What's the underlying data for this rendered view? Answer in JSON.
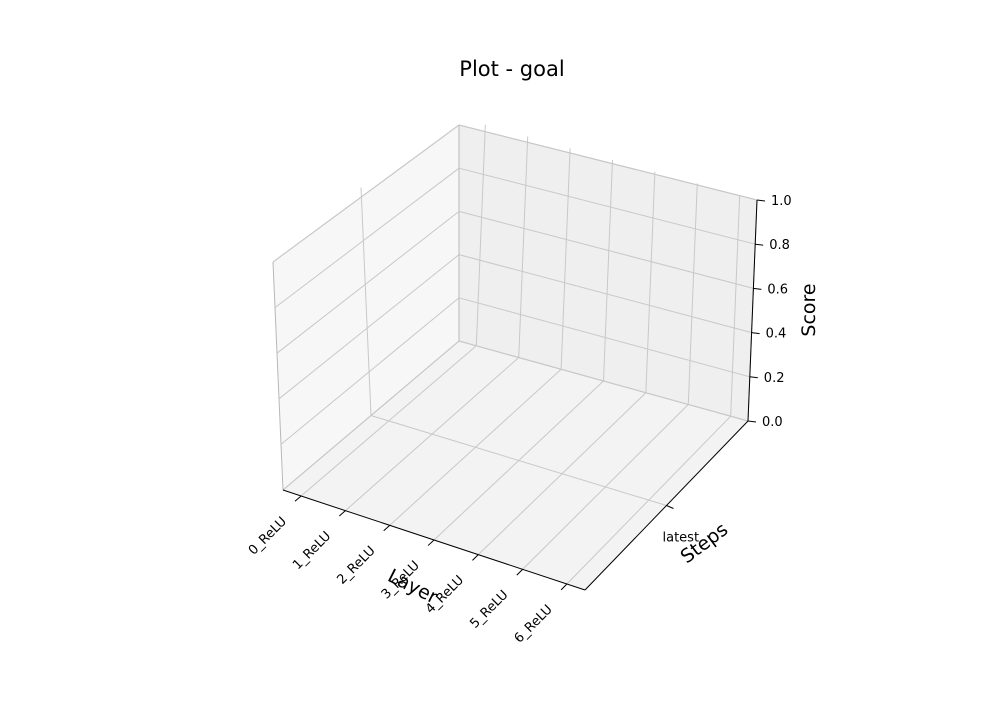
{
  "chart_data": {
    "type": "bar",
    "title": "Plot - goal",
    "xlabel": "Layer",
    "ylabel": "Steps",
    "zlabel": "Score",
    "x_categories": [
      "0_ReLU",
      "1_ReLU",
      "2_ReLU",
      "3_ReLU",
      "4_ReLU",
      "5_ReLU",
      "6_ReLU"
    ],
    "y_categories": [
      "latest"
    ],
    "z_ticks": [
      "0.0",
      "0.2",
      "0.4",
      "0.6",
      "0.8",
      "1.0"
    ],
    "zlim": [
      0,
      1
    ],
    "series": [],
    "grid": true
  },
  "colors": {
    "pane_left": "#f7f7f7",
    "pane_back": "#efefef",
    "pane_floor": "#f3f3f3",
    "grid": "#c8c8c8",
    "axis": "#000000"
  }
}
